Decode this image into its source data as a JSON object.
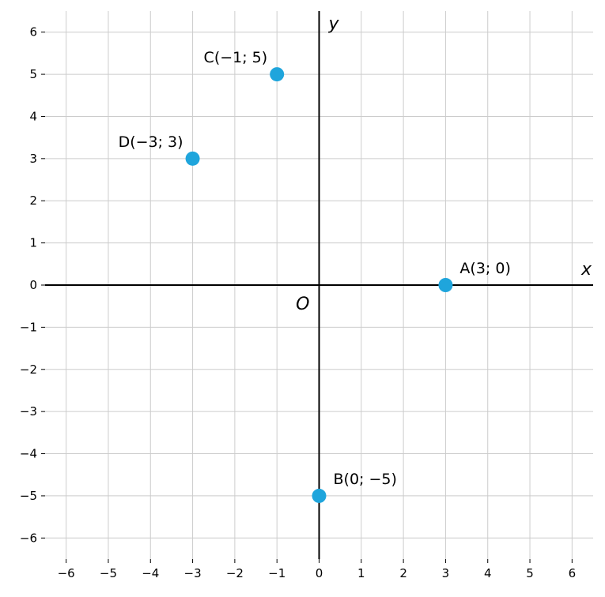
{
  "chart_data": {
    "type": "scatter",
    "xlim": [
      -6.5,
      6.5
    ],
    "ylim": [
      -6.5,
      6.5
    ],
    "xticks": [
      -6,
      -5,
      -4,
      -3,
      -2,
      -1,
      0,
      1,
      2,
      3,
      4,
      5,
      6
    ],
    "yticks": [
      -6,
      -5,
      -4,
      -3,
      -2,
      -1,
      0,
      1,
      2,
      3,
      4,
      5,
      6
    ],
    "xtick_labels": [
      "−6",
      "−5",
      "−4",
      "−3",
      "−2",
      "−1",
      "0",
      "1",
      "2",
      "3",
      "4",
      "5",
      "6"
    ],
    "ytick_labels": [
      "−6",
      "−5",
      "−4",
      "−3",
      "−2",
      "−1",
      "0",
      "1",
      "2",
      "3",
      "4",
      "5",
      "6"
    ],
    "grid": true,
    "x_axis_name": "x",
    "y_axis_name": "y",
    "origin_label": "O",
    "point_color": "#1fa5dc",
    "grid_color": "#cccccc",
    "points": [
      {
        "id": "A",
        "x": 3,
        "y": 0,
        "label": "A(3; 0)"
      },
      {
        "id": "B",
        "x": 0,
        "y": -5,
        "label": "B(0; −5)"
      },
      {
        "id": "C",
        "x": -1,
        "y": 5,
        "label": "C(−1; 5)"
      },
      {
        "id": "D",
        "x": -3,
        "y": 3,
        "label": "D(−3; 3)"
      }
    ]
  }
}
